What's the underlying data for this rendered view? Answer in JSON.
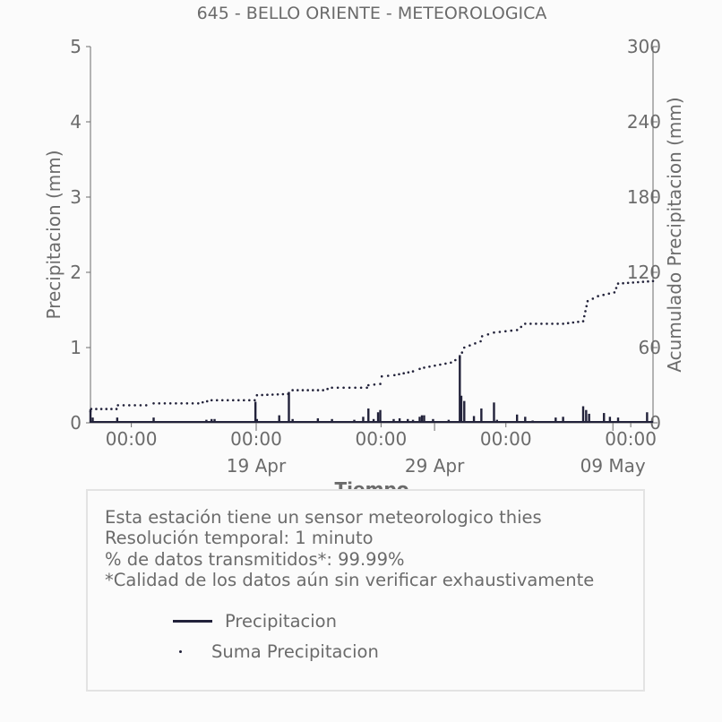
{
  "chart_data": {
    "type": "line",
    "title": "645 - BELLO ORIENTE - METEOROLOGICA",
    "xlabel": "Tiempo",
    "ylabel": "Precipitacion (mm)",
    "ylabel_right": "Acumulado Precipitacion (mm)",
    "ylim": [
      0,
      5
    ],
    "ylim_right": [
      0,
      300
    ],
    "yticks": [
      0,
      1,
      2,
      3,
      4,
      5
    ],
    "yticks_right": [
      0,
      60,
      120,
      180,
      240,
      300
    ],
    "xlim": [
      "2025-04-09T17:00",
      "2025-05-11T06:00"
    ],
    "xticks": [
      {
        "t": "2025-04-12T00:00",
        "label": "00:00"
      },
      {
        "t": "2025-04-19T00:00",
        "label": "00:00"
      },
      {
        "t": "2025-04-26T00:00",
        "label": "00:00"
      },
      {
        "t": "2025-05-03T00:00",
        "label": "00:00"
      },
      {
        "t": "2025-05-10T00:00",
        "label": "00:00"
      }
    ],
    "xticks_major": [
      {
        "t": "2025-04-19T00:00",
        "label": "19 Apr"
      },
      {
        "t": "2025-04-29T00:00",
        "label": "29 Apr"
      },
      {
        "t": "2025-05-09T00:00",
        "label": "09 May"
      }
    ],
    "grid": false,
    "series": [
      {
        "name": "Precipitacion",
        "style": "bars",
        "color": "#22223a",
        "x": [
          "2025-04-09T17:00",
          "2025-04-09T20:00",
          "2025-04-11T05:00",
          "2025-04-13T06:00",
          "2025-04-16T05:00",
          "2025-04-16T12:00",
          "2025-04-16T16:00",
          "2025-04-18T23:00",
          "2025-04-19T01:00",
          "2025-04-20T07:00",
          "2025-04-20T20:00",
          "2025-04-21T01:00",
          "2025-04-22T11:00",
          "2025-04-23T06:00",
          "2025-04-24T12:00",
          "2025-04-25T00:00",
          "2025-04-25T07:00",
          "2025-04-25T14:00",
          "2025-04-25T20:00",
          "2025-04-25T23:00",
          "2025-04-26T17:00",
          "2025-04-27T01:00",
          "2025-04-27T12:00",
          "2025-04-27T19:00",
          "2025-04-28T04:00",
          "2025-04-28T07:00",
          "2025-04-28T10:00",
          "2025-04-28T22:00",
          "2025-04-29T19:00",
          "2025-04-30T10:00",
          "2025-04-30T12:00",
          "2025-04-30T16:00",
          "2025-05-01T05:00",
          "2025-05-01T15:00",
          "2025-05-02T08:00",
          "2025-05-02T12:00",
          "2025-05-03T15:00",
          "2025-05-04T02:00",
          "2025-05-04T12:00",
          "2025-05-05T19:00",
          "2025-05-06T05:00",
          "2025-05-07T08:00",
          "2025-05-07T12:00",
          "2025-05-07T16:00",
          "2025-05-08T12:00",
          "2025-05-08T20:00",
          "2025-05-09T07:00",
          "2025-05-10T22:00"
        ],
        "values": [
          0.18,
          0.07,
          0.07,
          0.07,
          0.04,
          0.05,
          0.05,
          0.28,
          0.05,
          0.1,
          0.41,
          0.05,
          0.06,
          0.05,
          0.04,
          0.08,
          0.19,
          0.05,
          0.14,
          0.17,
          0.05,
          0.06,
          0.05,
          0.04,
          0.08,
          0.1,
          0.1,
          0.05,
          0.04,
          0.9,
          0.36,
          0.29,
          0.09,
          0.19,
          0.27,
          0.04,
          0.11,
          0.08,
          0.03,
          0.07,
          0.08,
          0.22,
          0.17,
          0.12,
          0.13,
          0.08,
          0.07,
          0.14
        ]
      },
      {
        "name": "Suma Precipicacion",
        "style": "dotted",
        "axis": "right",
        "color": "#22223a",
        "x": [
          "2025-04-09T17:00",
          "2025-04-09T18:00",
          "2025-04-11T04:00",
          "2025-04-11T06:00",
          "2025-04-12T20:00",
          "2025-04-13T06:00",
          "2025-04-15T18:00",
          "2025-04-16T12:00",
          "2025-04-18T22:00",
          "2025-04-19T01:00",
          "2025-04-20T19:00",
          "2025-04-21T01:00",
          "2025-04-22T18:00",
          "2025-04-23T06:00",
          "2025-04-25T05:00",
          "2025-04-25T07:00",
          "2025-04-25T23:00",
          "2025-04-26T01:00",
          "2025-04-26T18:00",
          "2025-04-27T19:00",
          "2025-04-28T04:00",
          "2025-04-28T10:00",
          "2025-04-29T22:00",
          "2025-04-30T10:00",
          "2025-04-30T16:00",
          "2025-05-01T14:00",
          "2025-05-01T16:00",
          "2025-05-02T08:00",
          "2025-05-03T15:00",
          "2025-05-04T02:00",
          "2025-05-06T05:00",
          "2025-05-07T08:00",
          "2025-05-07T14:00",
          "2025-05-08T04:00",
          "2025-05-09T02:00",
          "2025-05-09T07:00",
          "2025-05-11T06:00"
        ],
        "values": [
          9,
          11,
          11,
          14,
          14,
          15.5,
          15.5,
          18,
          18,
          22,
          23,
          26,
          26,
          28,
          28,
          30,
          31,
          37,
          38,
          41,
          43,
          44,
          48,
          52,
          60,
          65,
          69,
          72,
          74,
          79,
          79,
          81,
          97,
          101,
          104,
          111,
          113
        ]
      }
    ]
  },
  "info": {
    "lines": [
      "Esta estación tiene un sensor meteorologico thies",
      "Resolución temporal: 1 minuto",
      "% de datos transmitidos*: 99.99%",
      "*Calidad de los datos aún sin verificar exhaustivamente"
    ]
  },
  "legend": {
    "items": [
      "Precipitacion",
      "Suma Precipitacion"
    ]
  }
}
